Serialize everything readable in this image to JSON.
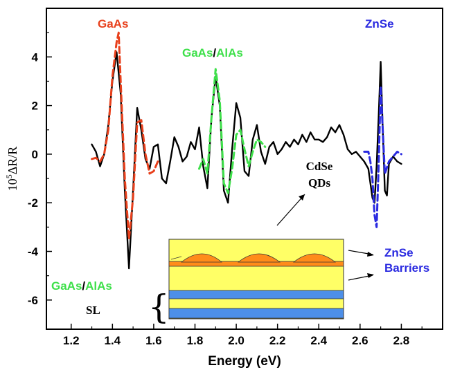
{
  "chart_data": {
    "type": "line",
    "title": "",
    "xlabel": "Energy (eV)",
    "ylabel_parts": {
      "sup": "5",
      "base": "10",
      "rest": "ΔR/R"
    },
    "xlim": [
      1.08,
      3.0
    ],
    "ylim": [
      -7.2,
      6.0
    ],
    "xticks": [
      1.2,
      1.4,
      1.6,
      1.8,
      2.0,
      2.2,
      2.4,
      2.6,
      2.8
    ],
    "xtick_labels": [
      "1.2",
      "1.4",
      "1.6",
      "1.8",
      "2.0",
      "2.2",
      "2.4",
      "2.6",
      "2.8"
    ],
    "yticks": [
      4,
      2,
      0,
      -2,
      -4,
      -6
    ],
    "ytick_labels": [
      "4",
      "2",
      "0",
      "-2",
      "-4",
      "-6"
    ],
    "grid": false,
    "colors": {
      "measured": "#000000",
      "gaas_fit": "#e8401c",
      "gaas_alas_fit": "#3ee04a",
      "znse_fit": "#2a2ae0"
    },
    "series": [
      {
        "name": "",
        "style": "solid",
        "x": [
          1.3,
          1.32,
          1.34,
          1.36,
          1.38,
          1.4,
          1.42,
          1.44,
          1.46,
          1.48,
          1.5,
          1.52,
          1.54,
          1.56,
          1.58,
          1.6,
          1.62,
          1.64,
          1.66,
          1.68,
          1.7,
          1.72,
          1.74,
          1.76,
          1.78,
          1.8,
          1.82,
          1.84,
          1.86,
          1.88,
          1.9,
          1.92,
          1.94,
          1.96,
          1.98,
          2.0,
          2.02,
          2.04,
          2.06,
          2.08,
          2.1,
          2.12,
          2.14,
          2.16,
          2.18,
          2.2,
          2.22,
          2.24,
          2.26,
          2.28,
          2.3,
          2.32,
          2.34,
          2.36,
          2.38,
          2.4,
          2.42,
          2.44,
          2.46,
          2.48,
          2.5,
          2.52,
          2.54,
          2.56,
          2.58,
          2.6,
          2.62,
          2.64,
          2.66,
          2.67,
          2.68,
          2.69,
          2.7,
          2.71,
          2.72,
          2.73,
          2.74,
          2.76,
          2.78,
          2.8
        ],
        "y": [
          0.4,
          0.1,
          -0.5,
          0.0,
          1.2,
          3.0,
          4.2,
          2.5,
          -1.5,
          -4.7,
          -1.5,
          1.9,
          1.0,
          -0.2,
          -0.6,
          0.3,
          0.4,
          -1.0,
          -1.2,
          -0.3,
          0.7,
          0.3,
          -0.3,
          -0.1,
          0.5,
          0.2,
          1.1,
          -0.5,
          -1.4,
          1.5,
          3.2,
          2.0,
          -1.5,
          -2.0,
          0.2,
          2.1,
          1.5,
          -0.7,
          -0.9,
          0.6,
          1.2,
          0.1,
          -0.4,
          0.3,
          0.5,
          0.0,
          0.2,
          0.5,
          0.3,
          0.6,
          0.4,
          0.8,
          0.5,
          0.9,
          0.6,
          0.6,
          0.5,
          0.7,
          1.1,
          0.9,
          1.2,
          0.8,
          0.2,
          0.0,
          0.1,
          -0.1,
          -0.3,
          -0.6,
          -1.8,
          -2.0,
          -0.5,
          1.5,
          3.8,
          1.0,
          -1.5,
          -1.7,
          -0.4,
          -0.1,
          -0.3,
          -0.4
        ]
      },
      {
        "name": "",
        "style": "dashed",
        "color_key": "gaas_fit",
        "x": [
          1.3,
          1.32,
          1.34,
          1.36,
          1.38,
          1.4,
          1.42,
          1.43,
          1.44,
          1.46,
          1.48,
          1.5,
          1.52,
          1.54,
          1.56,
          1.58,
          1.6,
          1.62
        ],
        "y": [
          -0.2,
          -0.15,
          -0.3,
          0.0,
          1.0,
          3.2,
          4.6,
          5.0,
          3.0,
          -1.0,
          -3.5,
          -1.8,
          1.3,
          1.4,
          0.0,
          -0.8,
          -0.7,
          -0.3
        ]
      },
      {
        "name": "",
        "style": "dashed",
        "color_key": "gaas_alas_fit",
        "x": [
          1.82,
          1.84,
          1.86,
          1.88,
          1.9,
          1.92,
          1.94,
          1.96,
          1.98,
          2.0,
          2.02,
          2.04,
          2.06,
          2.08,
          2.1,
          2.12,
          2.14
        ],
        "y": [
          -0.6,
          -0.2,
          -0.8,
          1.5,
          3.5,
          2.2,
          -1.2,
          -1.6,
          -0.6,
          0.8,
          1.0,
          0.2,
          -0.5,
          0.1,
          0.6,
          0.5,
          0.3
        ]
      },
      {
        "name": "",
        "style": "dashed",
        "color_key": "znse_fit",
        "x": [
          2.62,
          2.64,
          2.65,
          2.66,
          2.67,
          2.68,
          2.69,
          2.7,
          2.71,
          2.72,
          2.74,
          2.76,
          2.78,
          2.8
        ],
        "y": [
          0.1,
          0.1,
          -0.3,
          -1.0,
          -2.5,
          -3.0,
          -0.5,
          2.8,
          1.0,
          -0.8,
          -0.3,
          -0.1,
          0.1,
          0.0
        ]
      }
    ]
  },
  "annotations": {
    "gaas_top": "GaAs",
    "gaas_alas_top_a": "GaAs",
    "slash": "/",
    "gaas_alas_top_b": "AlAs",
    "znse_top": "ZnSe",
    "cdse_line1": "CdSe",
    "cdse_line2": "QDs",
    "znse_barriers_1": "ZnSe",
    "znse_barriers_2": "Barriers",
    "sl_gaas": "GaAs",
    "sl_slash": "/",
    "sl_alas": "AlAs",
    "sl_label": "SL",
    "brace": "{"
  },
  "inset_colors": {
    "yellow": "#ffff66",
    "orange": "#ff8c1a",
    "blue": "#4d8fe8",
    "outline": "#333333"
  }
}
